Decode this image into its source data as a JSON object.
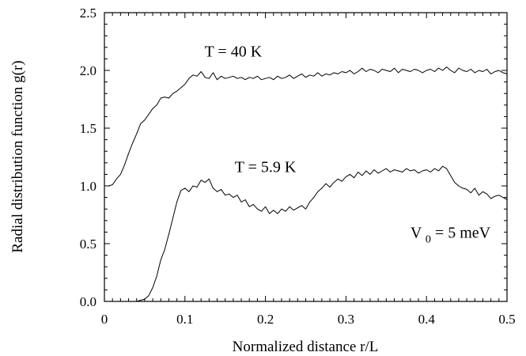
{
  "chart_data": {
    "type": "line",
    "xlabel": "Normalized distance r/L",
    "ylabel": "Radial distribution function g(r)",
    "xlim": [
      0,
      0.5
    ],
    "ylim": [
      0.0,
      2.5
    ],
    "x_ticks": [
      "0",
      "0.1",
      "0.2",
      "0.3",
      "0.4",
      "0.5"
    ],
    "y_ticks": [
      "0.0",
      "0.5",
      "1.0",
      "1.5",
      "2.0",
      "2.5"
    ],
    "grid": false,
    "legend": "none",
    "annotations": [
      {
        "text": "T = 40 K",
        "x": 0.16,
        "y": 2.12
      },
      {
        "text": "T = 5.9 K",
        "x": 0.2,
        "y": 1.12
      }
    ],
    "potential_label": {
      "prefix": "V",
      "subscript": "0",
      "suffix": " = 5 meV",
      "x": 0.38,
      "y": 0.55
    },
    "series": [
      {
        "label": "T = 40 K",
        "x": [
          0.005,
          0.01,
          0.015,
          0.02,
          0.025,
          0.03,
          0.035,
          0.04,
          0.045,
          0.05,
          0.055,
          0.06,
          0.065,
          0.07,
          0.075,
          0.08,
          0.085,
          0.09,
          0.095,
          0.1,
          0.105,
          0.11,
          0.115,
          0.12,
          0.125,
          0.13,
          0.135,
          0.14,
          0.145,
          0.15,
          0.155,
          0.16,
          0.165,
          0.17,
          0.175,
          0.18,
          0.185,
          0.19,
          0.195,
          0.2,
          0.205,
          0.21,
          0.215,
          0.22,
          0.225,
          0.23,
          0.235,
          0.24,
          0.245,
          0.25,
          0.255,
          0.26,
          0.265,
          0.27,
          0.275,
          0.28,
          0.285,
          0.29,
          0.295,
          0.3,
          0.305,
          0.31,
          0.315,
          0.32,
          0.325,
          0.33,
          0.335,
          0.34,
          0.345,
          0.35,
          0.355,
          0.36,
          0.365,
          0.37,
          0.375,
          0.38,
          0.385,
          0.39,
          0.395,
          0.4,
          0.405,
          0.41,
          0.415,
          0.42,
          0.425,
          0.43,
          0.435,
          0.44,
          0.445,
          0.45,
          0.455,
          0.46,
          0.465,
          0.47,
          0.475,
          0.48,
          0.485,
          0.49,
          0.495,
          0.5
        ],
        "y": [
          1.0,
          1.01,
          1.06,
          1.1,
          1.18,
          1.28,
          1.37,
          1.45,
          1.54,
          1.57,
          1.62,
          1.67,
          1.7,
          1.76,
          1.77,
          1.76,
          1.8,
          1.82,
          1.85,
          1.88,
          1.93,
          1.96,
          1.95,
          1.99,
          1.94,
          1.93,
          1.98,
          1.92,
          1.95,
          1.93,
          1.94,
          1.95,
          1.93,
          1.94,
          1.92,
          1.94,
          1.93,
          1.95,
          1.92,
          1.93,
          1.94,
          1.92,
          1.95,
          1.93,
          1.94,
          1.96,
          1.93,
          1.95,
          1.97,
          1.94,
          1.96,
          1.95,
          1.98,
          1.95,
          1.97,
          1.96,
          1.98,
          1.97,
          1.99,
          1.98,
          2.0,
          1.97,
          1.99,
          2.02,
          1.99,
          2.01,
          2.0,
          1.98,
          2.01,
          2.0,
          1.99,
          2.02,
          1.98,
          2.01,
          2.0,
          1.99,
          2.01,
          2.0,
          1.98,
          2.0,
          2.01,
          1.99,
          2.02,
          2.0,
          2.03,
          2.0,
          1.98,
          2.02,
          2.0,
          1.99,
          2.01,
          1.98,
          2.0,
          1.99,
          2.01,
          1.97,
          1.99,
          2.0,
          1.98,
          1.97
        ]
      },
      {
        "label": "T = 5.9 K",
        "x": [
          0.04,
          0.045,
          0.05,
          0.055,
          0.06,
          0.065,
          0.07,
          0.075,
          0.08,
          0.085,
          0.09,
          0.095,
          0.1,
          0.105,
          0.11,
          0.115,
          0.12,
          0.125,
          0.13,
          0.135,
          0.14,
          0.145,
          0.15,
          0.155,
          0.16,
          0.165,
          0.17,
          0.175,
          0.18,
          0.185,
          0.19,
          0.195,
          0.2,
          0.205,
          0.21,
          0.215,
          0.22,
          0.225,
          0.23,
          0.235,
          0.24,
          0.245,
          0.25,
          0.255,
          0.26,
          0.265,
          0.27,
          0.275,
          0.28,
          0.285,
          0.29,
          0.295,
          0.3,
          0.305,
          0.31,
          0.315,
          0.32,
          0.325,
          0.33,
          0.335,
          0.34,
          0.345,
          0.35,
          0.355,
          0.36,
          0.365,
          0.37,
          0.375,
          0.38,
          0.385,
          0.39,
          0.395,
          0.4,
          0.405,
          0.41,
          0.415,
          0.42,
          0.425,
          0.43,
          0.435,
          0.44,
          0.445,
          0.45,
          0.455,
          0.46,
          0.465,
          0.47,
          0.475,
          0.48,
          0.485,
          0.49,
          0.495,
          0.5
        ],
        "y": [
          0.0,
          0.01,
          0.02,
          0.05,
          0.12,
          0.22,
          0.36,
          0.45,
          0.58,
          0.72,
          0.86,
          0.96,
          0.98,
          0.95,
          1.0,
          0.99,
          1.05,
          1.03,
          1.06,
          0.98,
          0.95,
          0.97,
          0.92,
          0.93,
          0.9,
          0.92,
          0.86,
          0.88,
          0.82,
          0.84,
          0.8,
          0.78,
          0.82,
          0.76,
          0.79,
          0.76,
          0.8,
          0.78,
          0.82,
          0.79,
          0.81,
          0.83,
          0.8,
          0.86,
          0.9,
          0.95,
          0.98,
          1.02,
          0.99,
          1.03,
          1.06,
          1.04,
          1.08,
          1.1,
          1.07,
          1.12,
          1.09,
          1.13,
          1.1,
          1.14,
          1.11,
          1.13,
          1.15,
          1.12,
          1.14,
          1.13,
          1.12,
          1.15,
          1.13,
          1.14,
          1.11,
          1.13,
          1.14,
          1.12,
          1.15,
          1.13,
          1.17,
          1.15,
          1.09,
          1.03,
          1.0,
          0.98,
          0.97,
          0.94,
          0.98,
          0.92,
          0.95,
          0.93,
          0.89,
          0.91,
          0.92,
          0.9,
          0.88
        ]
      }
    ]
  }
}
